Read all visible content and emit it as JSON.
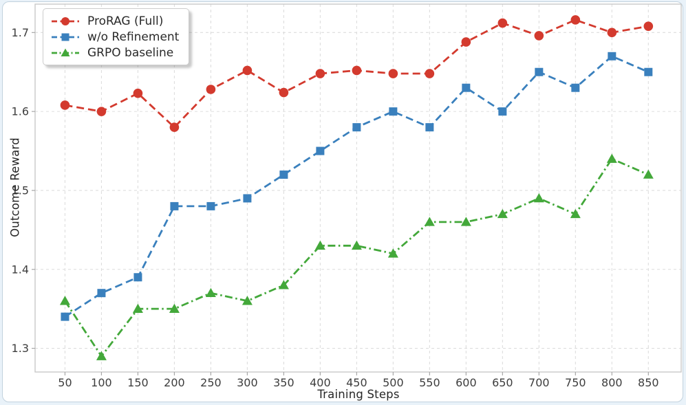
{
  "page": {
    "background_color": "#e9f2f9",
    "card_background": "#ffffff",
    "card_border_color": "#c2d2de"
  },
  "axes": {
    "spine_color": "#c9c9c9",
    "grid_color": "#dddddd",
    "tick_color": "#a6a6a6",
    "tick_label_color": "#3d3d3d",
    "axis_label_color": "#262626"
  },
  "legend": {
    "background": "#ffffff",
    "border_color": "#cccccc",
    "text_color": "#2a2a2a",
    "position": "upper left",
    "entries": [
      "ProRAG (Full)",
      "w/o Refinement",
      "GRPO baseline"
    ]
  },
  "chart_data": {
    "type": "line",
    "title": "",
    "xlabel": "Training Steps",
    "ylabel": "Outcome Reward",
    "x": [
      50,
      100,
      150,
      200,
      250,
      300,
      350,
      400,
      450,
      500,
      550,
      600,
      650,
      700,
      750,
      800,
      850
    ],
    "yticks": [
      1.3,
      1.4,
      1.5,
      1.6,
      1.7
    ],
    "xlim": [
      9,
      895
    ],
    "ylim": [
      1.27,
      1.736
    ],
    "grid": true,
    "grid_style": "dashed",
    "legend_position": "upper left",
    "series": [
      {
        "name": "ProRAG (Full)",
        "color": "#d33a2e",
        "marker": "circle",
        "linestyle": "dashed",
        "values": [
          1.608,
          1.6,
          1.623,
          1.58,
          1.628,
          1.652,
          1.624,
          1.648,
          1.652,
          1.648,
          1.648,
          1.688,
          1.712,
          1.696,
          1.716,
          1.7,
          1.708
        ]
      },
      {
        "name": "w/o Refinement",
        "color": "#3a80bd",
        "marker": "square",
        "linestyle": "dashed",
        "values": [
          1.34,
          1.37,
          1.39,
          1.48,
          1.48,
          1.49,
          1.52,
          1.55,
          1.58,
          1.6,
          1.58,
          1.63,
          1.6,
          1.65,
          1.63,
          1.67,
          1.65
        ]
      },
      {
        "name": "GRPO baseline",
        "color": "#43a83a",
        "marker": "triangle",
        "linestyle": "dashdot",
        "values": [
          1.36,
          1.29,
          1.35,
          1.35,
          1.37,
          1.36,
          1.38,
          1.43,
          1.43,
          1.42,
          1.46,
          1.46,
          1.47,
          1.49,
          1.47,
          1.54,
          1.52
        ]
      }
    ]
  }
}
